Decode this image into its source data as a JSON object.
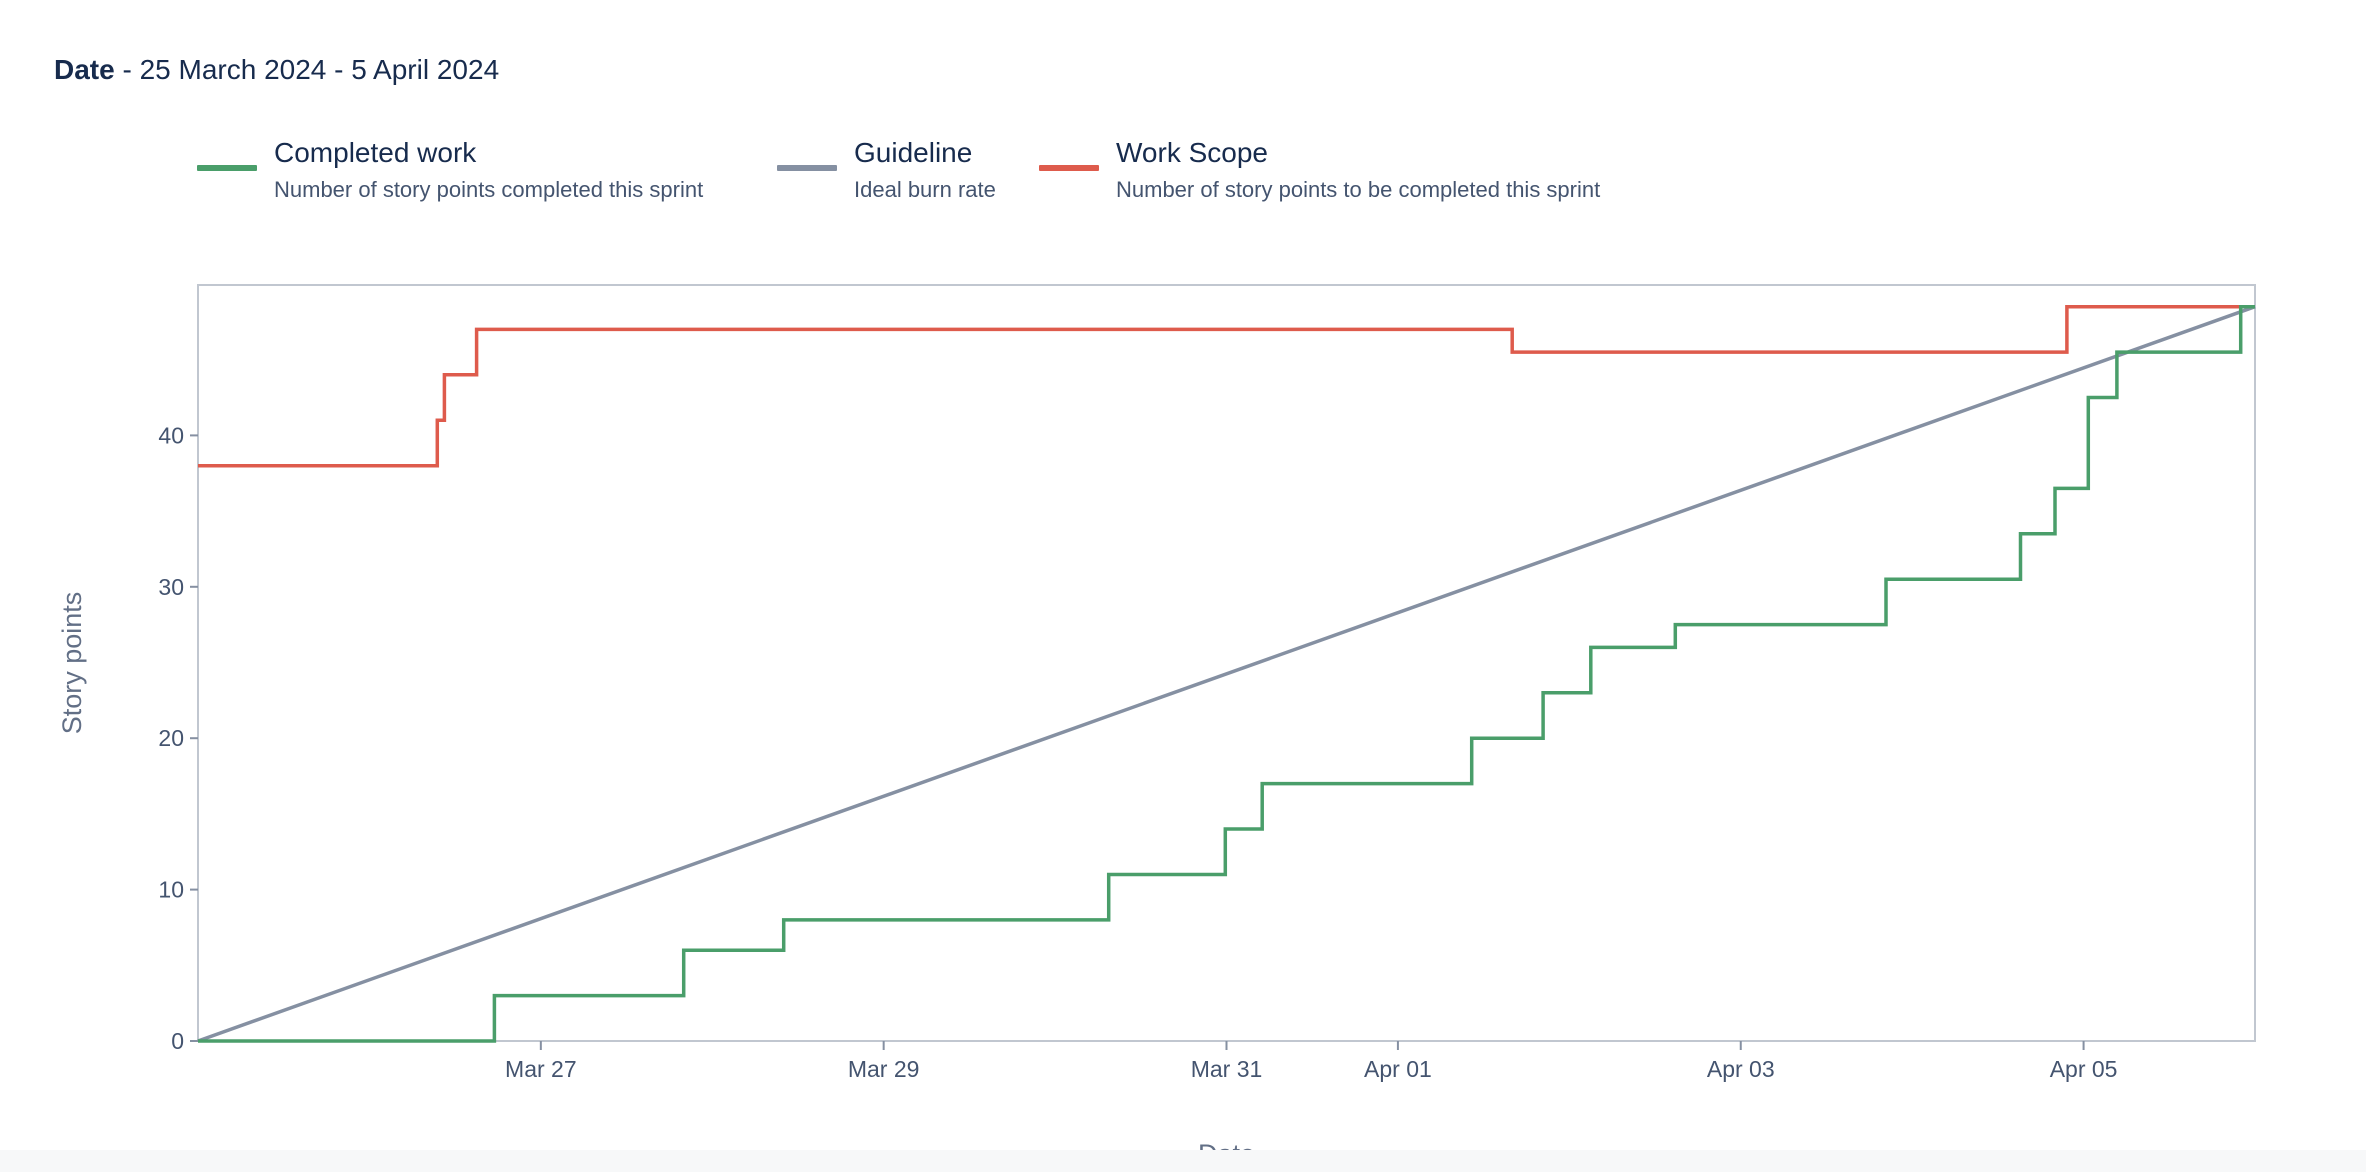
{
  "header": {
    "label_bold": "Date",
    "range_text": " - 25 March 2024 - 5 April 2024"
  },
  "legend": [
    {
      "name": "Completed work",
      "description": "Number of story points completed this sprint",
      "color": "#4a9e6a"
    },
    {
      "name": "Guideline",
      "description": "Ideal burn rate",
      "color": "#8590a2"
    },
    {
      "name": "Work Scope",
      "description": "Number of story points to be completed this sprint",
      "color": "#de5b4c"
    }
  ],
  "chart_data": {
    "type": "line",
    "line_shape": "step",
    "xlabel": "Date",
    "ylabel": "Story points",
    "x_start": "2024-03-25T00:00",
    "x_end": "2024-04-06T00:00",
    "ylim": [
      0,
      50
    ],
    "yticks": [
      0,
      10,
      20,
      30,
      40
    ],
    "xticks": [
      {
        "x": "2024-03-27T00:00",
        "label": "Mar 27"
      },
      {
        "x": "2024-03-29T00:00",
        "label": "Mar 29"
      },
      {
        "x": "2024-03-31T00:00",
        "label": "Mar 31"
      },
      {
        "x": "2024-04-01T00:00",
        "label": "Apr 01"
      },
      {
        "x": "2024-04-03T00:00",
        "label": "Apr 03"
      },
      {
        "x": "2024-04-05T00:00",
        "label": "Apr 05"
      }
    ],
    "grid": false,
    "legend_position": "top-left",
    "series": [
      {
        "name": "Work Scope",
        "color": "#de5b4c",
        "points": [
          [
            "2024-03-25T00:00",
            38
          ],
          [
            "2024-03-26T09:30",
            41
          ],
          [
            "2024-03-26T10:30",
            44
          ],
          [
            "2024-03-26T15:00",
            47
          ],
          [
            "2024-04-01T16:00",
            45.5
          ],
          [
            "2024-04-04T21:40",
            48.5
          ],
          [
            "2024-04-06T00:00",
            48.5
          ]
        ]
      },
      {
        "name": "Guideline",
        "color": "#8590a2",
        "points": [
          [
            "2024-03-25T00:00",
            0
          ],
          [
            "2024-04-06T00:00",
            48.5
          ]
        ]
      },
      {
        "name": "Completed work",
        "color": "#4a9e6a",
        "points": [
          [
            "2024-03-25T00:00",
            0
          ],
          [
            "2024-03-26T17:30",
            3
          ],
          [
            "2024-03-27T20:00",
            6
          ],
          [
            "2024-03-28T10:00",
            8
          ],
          [
            "2024-03-30T07:30",
            11
          ],
          [
            "2024-03-30T23:50",
            14
          ],
          [
            "2024-03-31T05:00",
            17
          ],
          [
            "2024-04-01T10:20",
            20
          ],
          [
            "2024-04-01T20:20",
            23
          ],
          [
            "2024-04-02T03:00",
            26
          ],
          [
            "2024-04-02T14:50",
            27.5
          ],
          [
            "2024-04-03T20:20",
            30.5
          ],
          [
            "2024-04-04T15:10",
            33.5
          ],
          [
            "2024-04-04T20:00",
            36.5
          ],
          [
            "2024-04-05T00:40",
            42.5
          ],
          [
            "2024-04-05T04:40",
            45.5
          ],
          [
            "2024-04-05T22:00",
            48.5
          ],
          [
            "2024-04-06T00:00",
            48.5
          ]
        ]
      }
    ]
  }
}
